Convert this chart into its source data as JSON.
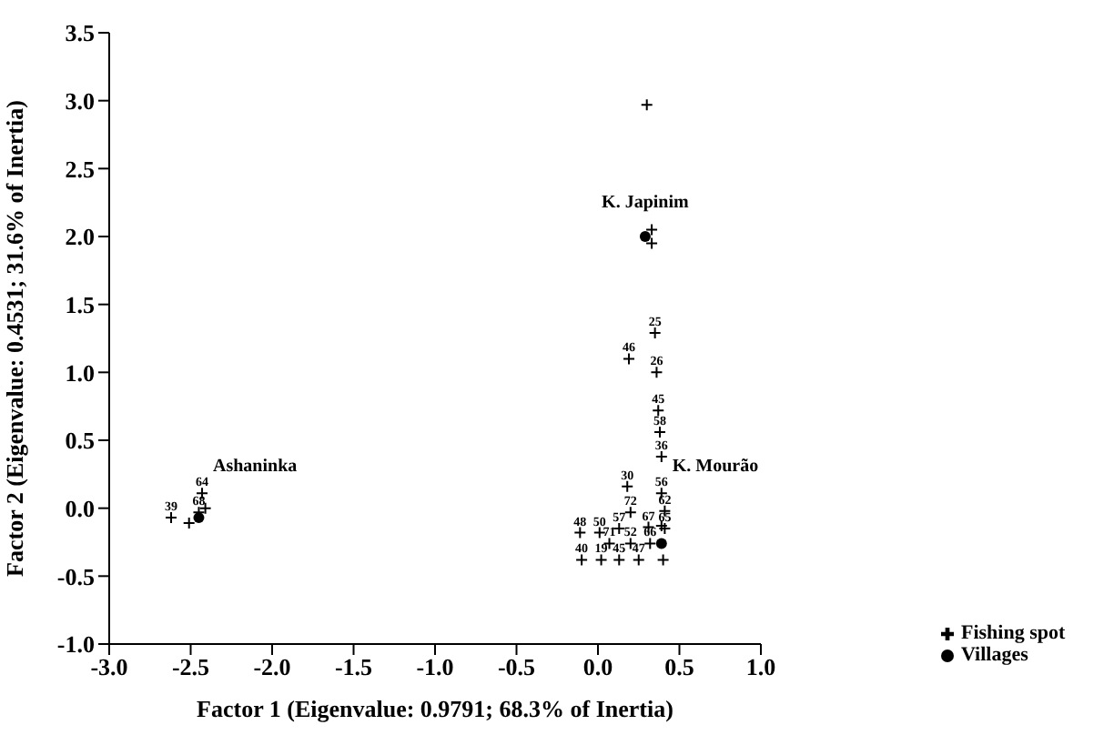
{
  "chart_data": {
    "type": "scatter",
    "xlabel": "Factor 1 (Eigenvalue: 0.9791; 68.3% of Inertia)",
    "ylabel": "Factor 2 (Eigenvalue: 0.4531; 31.6% of Inertia)",
    "xlim": [
      -3.0,
      1.0
    ],
    "xticks": [
      {
        "value": -3,
        "label": "-3.0"
      },
      {
        "value": -2.5,
        "label": "-2.5"
      },
      {
        "value": -2,
        "label": "-2.0"
      },
      {
        "value": -1.5,
        "label": "-1.5"
      },
      {
        "value": -1,
        "label": "-1.0"
      },
      {
        "value": -0.5,
        "label": "-0.5"
      },
      {
        "value": 0,
        "label": "0.0"
      },
      {
        "value": 0.5,
        "label": "0.5"
      },
      {
        "value": 1,
        "label": "1.0"
      }
    ],
    "ylim": [
      -1.0,
      3.5
    ],
    "yticks": [
      {
        "value": -1,
        "label": "-1.0"
      },
      {
        "value": -0.5,
        "label": "-0.5"
      },
      {
        "value": 0,
        "label": "0.0"
      },
      {
        "value": 0.5,
        "label": "0.5"
      },
      {
        "value": 1,
        "label": "1.0"
      },
      {
        "value": 1.5,
        "label": "1.5"
      },
      {
        "value": 2,
        "label": "2.0"
      },
      {
        "value": 2.5,
        "label": "2.5"
      },
      {
        "value": 3,
        "label": "3.0"
      },
      {
        "value": 3.5,
        "label": "3.5"
      }
    ],
    "grid": false,
    "legend": "bottom right",
    "series": [
      {
        "name": "Fishing spot",
        "color": "#000000",
        "marker": "cross",
        "x": [
          0.3,
          0.33,
          0.33,
          0.4,
          0.39,
          -2.41,
          -2.51,
          0.35,
          0.19,
          0.36,
          0.37,
          0.38,
          0.39,
          0.18,
          0.39,
          0.2,
          0.41,
          -0.11,
          0.01,
          0.13,
          0.31,
          0.41,
          0.07,
          0.2,
          0.32,
          -0.1,
          0.02,
          0.13,
          0.25,
          -2.43,
          -2.45,
          -2.62
        ],
        "values": [
          2.97,
          2.05,
          1.95,
          -0.38,
          -0.13,
          0.0,
          -0.11,
          1.29,
          1.1,
          1.0,
          0.72,
          0.56,
          0.38,
          0.16,
          0.11,
          -0.03,
          -0.02,
          -0.18,
          -0.18,
          -0.15,
          -0.14,
          -0.15,
          -0.26,
          -0.26,
          -0.26,
          -0.38,
          -0.38,
          -0.38,
          -0.38,
          0.11,
          -0.03,
          -0.07
        ]
      },
      {
        "name": "Villages",
        "color": "#000000",
        "marker": "circle",
        "x": [
          0.29,
          0.39,
          -2.45
        ],
        "values": [
          2.0,
          -0.26,
          -0.07
        ]
      }
    ],
    "annotations": [
      {
        "text": "K. Japinim",
        "x": 0.29,
        "y": 2.0
      },
      {
        "text": "K. Mourão",
        "x": 0.39,
        "y": 0.11
      },
      {
        "text": "Ashaninka",
        "x": -2.43,
        "y": 0.11
      },
      {
        "text": "25",
        "x": 0.35,
        "y": 1.29
      },
      {
        "text": "46",
        "x": 0.19,
        "y": 1.1
      },
      {
        "text": "26",
        "x": 0.36,
        "y": 1.0
      },
      {
        "text": "45",
        "x": 0.37,
        "y": 0.72
      },
      {
        "text": "58",
        "x": 0.38,
        "y": 0.56
      },
      {
        "text": "36",
        "x": 0.39,
        "y": 0.38
      },
      {
        "text": "30",
        "x": 0.18,
        "y": 0.16
      },
      {
        "text": "56",
        "x": 0.39,
        "y": 0.11
      },
      {
        "text": "72",
        "x": 0.2,
        "y": -0.03
      },
      {
        "text": "62",
        "x": 0.41,
        "y": -0.02
      },
      {
        "text": "48",
        "x": -0.11,
        "y": -0.18
      },
      {
        "text": "50",
        "x": 0.01,
        "y": -0.18
      },
      {
        "text": "57",
        "x": 0.13,
        "y": -0.15
      },
      {
        "text": "67",
        "x": 0.31,
        "y": -0.14
      },
      {
        "text": "65",
        "x": 0.41,
        "y": -0.15
      },
      {
        "text": "71",
        "x": 0.07,
        "y": -0.26
      },
      {
        "text": "52",
        "x": 0.2,
        "y": -0.26
      },
      {
        "text": "66",
        "x": 0.32,
        "y": -0.26
      },
      {
        "text": "40",
        "x": -0.1,
        "y": -0.38
      },
      {
        "text": "19",
        "x": 0.02,
        "y": -0.38
      },
      {
        "text": "45",
        "x": 0.13,
        "y": -0.38
      },
      {
        "text": "47",
        "x": 0.25,
        "y": -0.38
      },
      {
        "text": "64",
        "x": -2.43,
        "y": 0.11
      },
      {
        "text": "68",
        "x": -2.45,
        "y": -0.03
      },
      {
        "text": "39",
        "x": -2.62,
        "y": -0.07
      }
    ]
  }
}
